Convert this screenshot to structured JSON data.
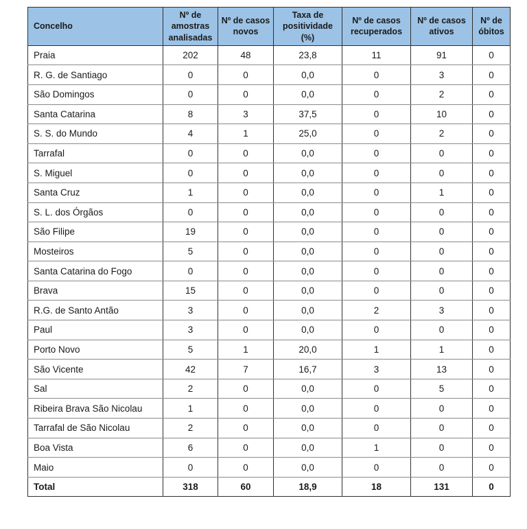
{
  "theme": {
    "header_bg": "#9CC3E6",
    "border_dark": "#2e2e2e",
    "border_light": "#8a8a8a",
    "text_color": "#1a1a1a",
    "page_bg": "#ffffff"
  },
  "table": {
    "columns": [
      "Concelho",
      "Nº de amostras analisadas",
      "Nº de casos novos",
      "Taxa de positividade (%)",
      "Nº de casos recuperados",
      "Nº de casos ativos",
      "Nº de óbitos"
    ],
    "rows": [
      {
        "concelho": "Praia",
        "values": [
          "202",
          "48",
          "23,8",
          "11",
          "91",
          "0"
        ]
      },
      {
        "concelho": "R. G. de Santiago",
        "values": [
          "0",
          "0",
          "0,0",
          "0",
          "3",
          "0"
        ]
      },
      {
        "concelho": "São Domingos",
        "values": [
          "0",
          "0",
          "0,0",
          "0",
          "2",
          "0"
        ]
      },
      {
        "concelho": "Santa Catarina",
        "values": [
          "8",
          "3",
          "37,5",
          "0",
          "10",
          "0"
        ]
      },
      {
        "concelho": "S. S. do Mundo",
        "values": [
          "4",
          "1",
          "25,0",
          "0",
          "2",
          "0"
        ]
      },
      {
        "concelho": "Tarrafal",
        "values": [
          "0",
          "0",
          "0,0",
          "0",
          "0",
          "0"
        ]
      },
      {
        "concelho": "S. Miguel",
        "values": [
          "0",
          "0",
          "0,0",
          "0",
          "0",
          "0"
        ]
      },
      {
        "concelho": "Santa Cruz",
        "values": [
          "1",
          "0",
          "0,0",
          "0",
          "1",
          "0"
        ]
      },
      {
        "concelho": "S. L. dos Órgãos",
        "values": [
          "0",
          "0",
          "0,0",
          "0",
          "0",
          "0"
        ]
      },
      {
        "concelho": "São Filipe",
        "values": [
          "19",
          "0",
          "0,0",
          "0",
          "0",
          "0"
        ]
      },
      {
        "concelho": "Mosteiros",
        "values": [
          "5",
          "0",
          "0,0",
          "0",
          "0",
          "0"
        ]
      },
      {
        "concelho": "Santa Catarina do Fogo",
        "values": [
          "0",
          "0",
          "0,0",
          "0",
          "0",
          "0"
        ]
      },
      {
        "concelho": "Brava",
        "values": [
          "15",
          "0",
          "0,0",
          "0",
          "0",
          "0"
        ]
      },
      {
        "concelho": "R.G. de Santo Antão",
        "values": [
          "3",
          "0",
          "0,0",
          "2",
          "3",
          "0"
        ]
      },
      {
        "concelho": "Paul",
        "values": [
          "3",
          "0",
          "0,0",
          "0",
          "0",
          "0"
        ]
      },
      {
        "concelho": "Porto Novo",
        "values": [
          "5",
          "1",
          "20,0",
          "1",
          "1",
          "0"
        ]
      },
      {
        "concelho": "São Vicente",
        "values": [
          "42",
          "7",
          "16,7",
          "3",
          "13",
          "0"
        ]
      },
      {
        "concelho": "Sal",
        "values": [
          "2",
          "0",
          "0,0",
          "0",
          "5",
          "0"
        ]
      },
      {
        "concelho": "Ribeira Brava São Nicolau",
        "values": [
          "1",
          "0",
          "0,0",
          "0",
          "0",
          "0"
        ]
      },
      {
        "concelho": "Tarrafal de São Nicolau",
        "values": [
          "2",
          "0",
          "0,0",
          "0",
          "0",
          "0"
        ]
      },
      {
        "concelho": "Boa Vista",
        "values": [
          "6",
          "0",
          "0,0",
          "1",
          "0",
          "0"
        ]
      },
      {
        "concelho": "Maio",
        "values": [
          "0",
          "0",
          "0,0",
          "0",
          "0",
          "0"
        ]
      }
    ],
    "total": {
      "concelho": "Total",
      "values": [
        "318",
        "60",
        "18,9",
        "18",
        "131",
        "0"
      ]
    }
  }
}
